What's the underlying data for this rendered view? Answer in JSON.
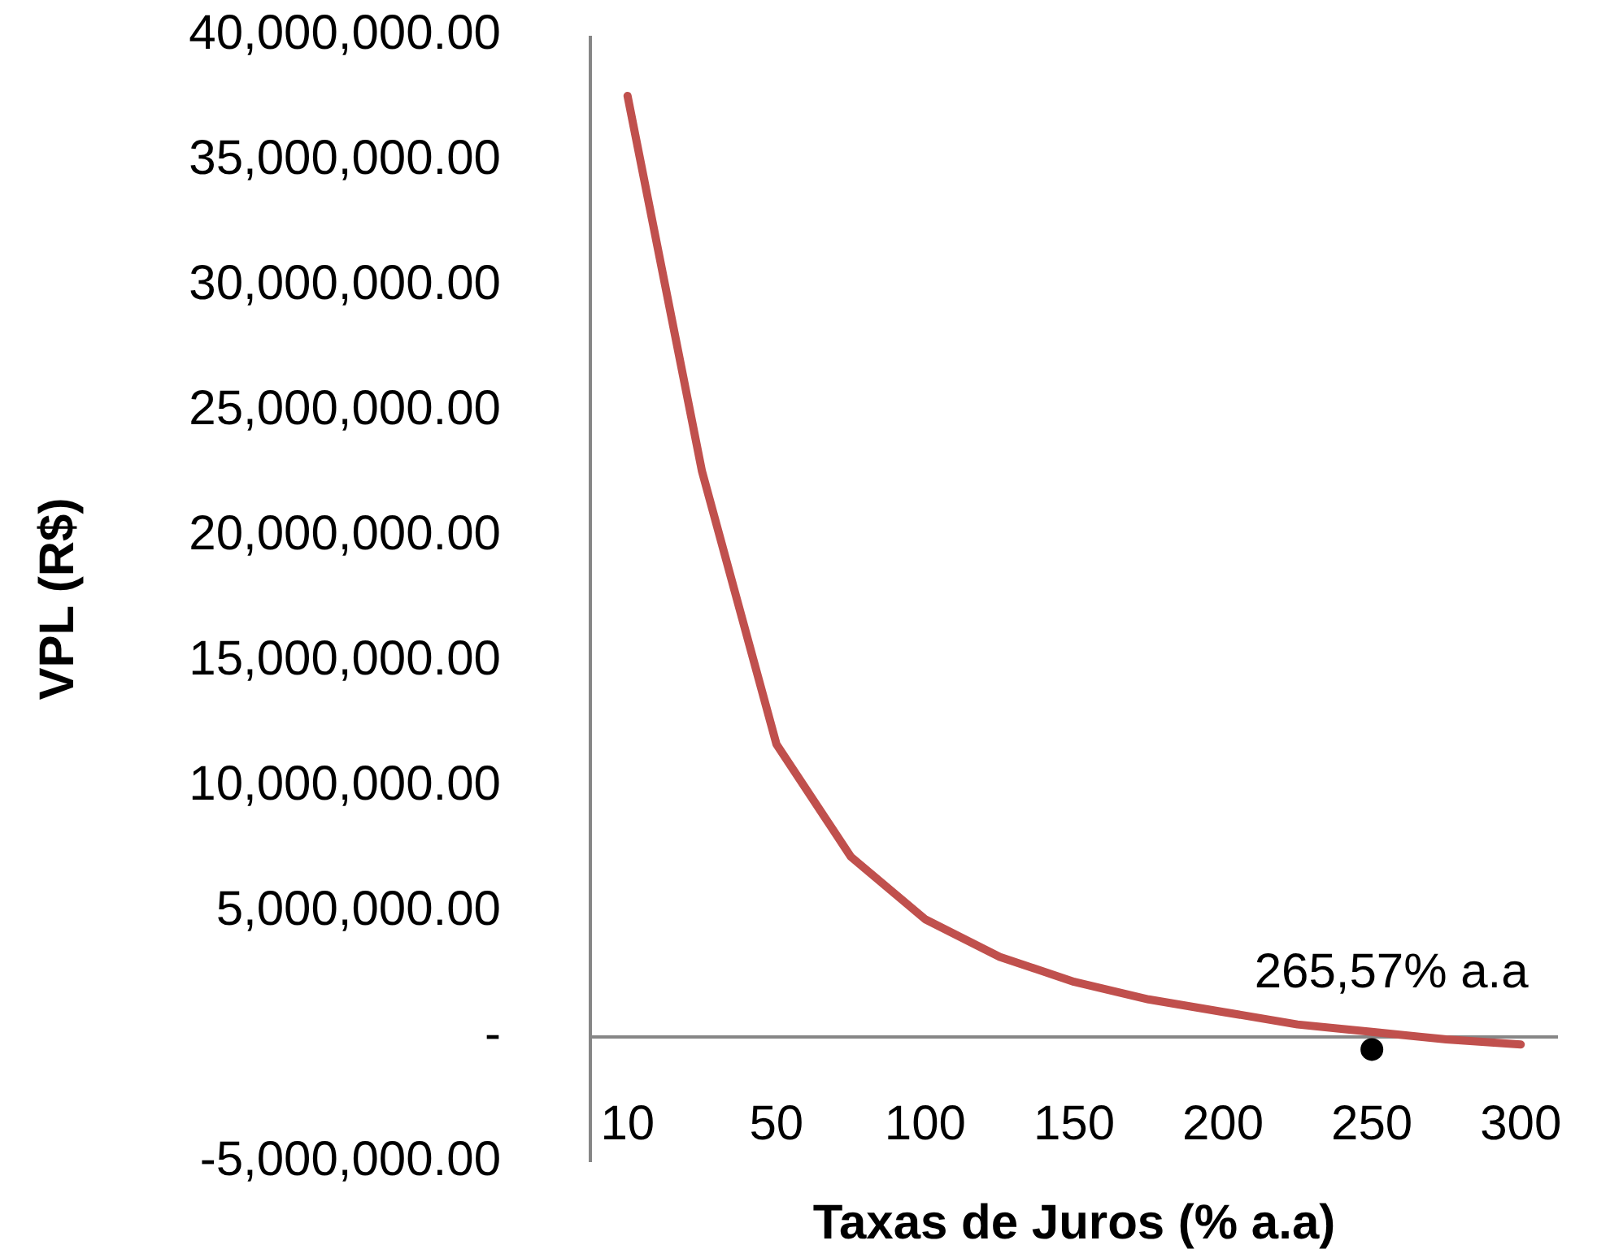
{
  "chart_data": {
    "type": "line",
    "xlabel": "Taxas de Juros (% a.a)",
    "ylabel": "VPL (R$)",
    "categories": [
      "10",
      null,
      "50",
      null,
      "100",
      null,
      "150",
      null,
      "200",
      null,
      "250",
      null,
      "300"
    ],
    "series": [
      {
        "color": "#c0504d",
        "values": [
          37600000,
          22600000,
          11700000,
          7200000,
          4700000,
          3200000,
          2200000,
          1500000,
          1000000,
          500000,
          200000,
          -100000,
          -300000
        ]
      }
    ],
    "ylim": [
      -5000000,
      40000000
    ],
    "yticks": [
      {
        "value": -5000000,
        "label": "-5,000,000.00"
      },
      {
        "value": 0,
        "label": "-"
      },
      {
        "value": 5000000,
        "label": "5,000,000.00"
      },
      {
        "value": 10000000,
        "label": "10,000,000.00"
      },
      {
        "value": 15000000,
        "label": "15,000,000.00"
      },
      {
        "value": 20000000,
        "label": "20,000,000.00"
      },
      {
        "value": 25000000,
        "label": "25,000,000.00"
      },
      {
        "value": 30000000,
        "label": "30,000,000.00"
      },
      {
        "value": 35000000,
        "label": "35,000,000.00"
      },
      {
        "value": 40000000,
        "label": "40,000,000.00"
      }
    ],
    "annotations": [
      {
        "text": "265,57% a.a",
        "x": "250",
        "y": -500000
      }
    ],
    "grid": false,
    "marker": "none",
    "line_style": "solid"
  }
}
